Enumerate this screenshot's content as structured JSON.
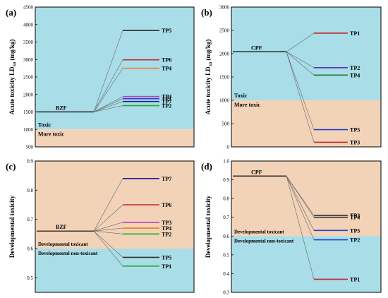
{
  "chart_data": [
    {
      "type": "energy-level",
      "panel_label": "(a)",
      "ylabel": "Acute toxicity LD50 (mg/kg)",
      "ylabel_main": "Acute toxicity LD",
      "ylabel_sub": "50",
      "ylabel_unit": " (mg/kg)",
      "ylim": [
        500,
        4500
      ],
      "yticks": [
        500,
        1000,
        1500,
        2000,
        2500,
        3000,
        3500,
        4000,
        4500
      ],
      "threshold": 1000,
      "upper_region": "blue",
      "region_labels": {
        "upper": "Toxic",
        "lower": "More toxic"
      },
      "parent": {
        "name": "BZF",
        "value": 1500
      },
      "products": [
        {
          "name": "TP5",
          "value": 3830,
          "color": "#333333"
        },
        {
          "name": "TP6",
          "value": 2990,
          "color": "#c0282d"
        },
        {
          "name": "TP4",
          "value": 2750,
          "color": "#f07d24"
        },
        {
          "name": "TP3",
          "value": 1940,
          "color": "#b63ec9"
        },
        {
          "name": "TP1",
          "value": 1880,
          "color": "#2c3ec0"
        },
        {
          "name": "TP7",
          "value": 1800,
          "color": "#1c1c9c"
        },
        {
          "name": "TP2",
          "value": 1680,
          "color": "#2aa62a"
        }
      ]
    },
    {
      "type": "energy-level",
      "panel_label": "(b)",
      "ylabel": "Acute toxicity LD50 (mg/kg)",
      "ylabel_main": "Acute toxicity LD",
      "ylabel_sub": "50",
      "ylabel_unit": " (mg/kg)",
      "ylim": [
        0,
        3000
      ],
      "yticks": [
        0,
        500,
        1000,
        1500,
        2000,
        2500,
        3000
      ],
      "threshold": 1000,
      "upper_region": "blue",
      "region_labels": {
        "upper": "Toxic",
        "lower": "More toxic"
      },
      "parent": {
        "name": "CPF",
        "value": 2040
      },
      "products": [
        {
          "name": "TP1",
          "value": 2440,
          "color": "#c0282d"
        },
        {
          "name": "TP2",
          "value": 1700,
          "color": "#5b2ec0"
        },
        {
          "name": "TP4",
          "value": 1540,
          "color": "#1f7a2a"
        },
        {
          "name": "TP5",
          "value": 370,
          "color": "#2c3ec0"
        },
        {
          "name": "TP3",
          "value": 100,
          "color": "#c0282d"
        }
      ]
    },
    {
      "type": "energy-level",
      "panel_label": "(c)",
      "ylabel": "Developmental toxicity",
      "ylim": [
        0.45,
        0.9
      ],
      "yticks": [
        0.5,
        0.6,
        0.7,
        0.8,
        0.9
      ],
      "threshold": 0.6,
      "upper_region": "tan",
      "region_labels": {
        "upper": "Developmental toxicant",
        "lower": "Developmental non-toxicant"
      },
      "parent": {
        "name": "BZF",
        "value": 0.66
      },
      "products": [
        {
          "name": "TP7",
          "value": 0.84,
          "color": "#1c1c9c"
        },
        {
          "name": "TP6",
          "value": 0.75,
          "color": "#c0282d"
        },
        {
          "name": "TP3",
          "value": 0.69,
          "color": "#b63ec9"
        },
        {
          "name": "TP4",
          "value": 0.67,
          "color": "#f07d24"
        },
        {
          "name": "TP2",
          "value": 0.65,
          "color": "#2aa62a"
        },
        {
          "name": "TP5",
          "value": 0.57,
          "color": "#333333"
        },
        {
          "name": "TP1",
          "value": 0.54,
          "color": "#2aa62a"
        }
      ]
    },
    {
      "type": "energy-level",
      "panel_label": "(d)",
      "ylabel": "Developmental toxicity",
      "ylim": [
        0.3,
        1.0
      ],
      "yticks": [
        0.3,
        0.4,
        0.5,
        0.6,
        0.7,
        0.8,
        0.9,
        1.0
      ],
      "threshold": 0.6,
      "upper_region": "tan",
      "region_labels": {
        "upper": "Developmental toxicant",
        "lower": "Developmental non-toxicant"
      },
      "parent": {
        "name": "CPF",
        "value": 0.92
      },
      "products": [
        {
          "name": "TP3",
          "value": 0.71,
          "color": "#333333"
        },
        {
          "name": "TP4",
          "value": 0.7,
          "color": "#333333"
        },
        {
          "name": "TP5",
          "value": 0.63,
          "color": "#2c3ec0"
        },
        {
          "name": "TP2",
          "value": 0.58,
          "color": "#2c3ec0"
        },
        {
          "name": "TP1",
          "value": 0.37,
          "color": "#c0282d"
        }
      ]
    }
  ]
}
